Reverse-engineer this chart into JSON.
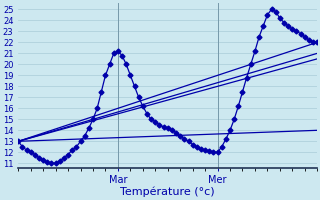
{
  "background_color": "#cde8f0",
  "grid_color": "#aaccd8",
  "line_color": "#0000aa",
  "xlabel": "Température (°c)",
  "xlabel_fontsize": 8,
  "ylabel_ticks": [
    11,
    12,
    13,
    14,
    15,
    16,
    17,
    18,
    19,
    20,
    21,
    22,
    23,
    24,
    25
  ],
  "ylim": [
    10.6,
    25.6
  ],
  "xlim": [
    0,
    72
  ],
  "mar_x": 24,
  "mer_x": 48,
  "main_series_x": [
    0,
    1,
    2,
    3,
    4,
    5,
    6,
    7,
    8,
    9,
    10,
    11,
    12,
    13,
    14,
    15,
    16,
    17,
    18,
    19,
    20,
    21,
    22,
    23,
    24,
    25,
    26,
    27,
    28,
    29,
    30,
    31,
    32,
    33,
    34,
    35,
    36,
    37,
    38,
    39,
    40,
    41,
    42,
    43,
    44,
    45,
    46,
    47,
    48,
    49,
    50,
    51,
    52,
    53,
    54,
    55,
    56,
    57,
    58,
    59,
    60,
    61,
    62,
    63,
    64,
    65,
    66,
    67,
    68,
    69,
    70,
    71,
    72
  ],
  "main_series_y": [
    13.0,
    12.5,
    12.2,
    12.0,
    11.8,
    11.5,
    11.3,
    11.1,
    11.0,
    11.0,
    11.2,
    11.5,
    11.8,
    12.2,
    12.5,
    13.0,
    13.5,
    14.2,
    15.0,
    16.0,
    17.5,
    19.0,
    20.0,
    21.0,
    21.2,
    20.8,
    20.0,
    19.0,
    18.0,
    17.0,
    16.2,
    15.5,
    15.0,
    14.8,
    14.5,
    14.3,
    14.2,
    14.0,
    13.8,
    13.5,
    13.2,
    13.0,
    12.7,
    12.5,
    12.3,
    12.2,
    12.1,
    12.0,
    12.0,
    12.5,
    13.2,
    14.0,
    15.0,
    16.2,
    17.5,
    18.8,
    20.0,
    21.2,
    22.5,
    23.5,
    24.5,
    25.0,
    24.8,
    24.2,
    23.8,
    23.5,
    23.2,
    23.0,
    22.8,
    22.5,
    22.2,
    22.0,
    22.0
  ],
  "diag_lines": [
    {
      "x": [
        0,
        72
      ],
      "y": [
        13.0,
        22.0
      ]
    },
    {
      "x": [
        0,
        72
      ],
      "y": [
        13.0,
        21.0
      ]
    },
    {
      "x": [
        0,
        72
      ],
      "y": [
        13.0,
        20.5
      ]
    },
    {
      "x": [
        0,
        72
      ],
      "y": [
        13.0,
        14.0
      ]
    }
  ],
  "marker": "D",
  "markersize": 2.5,
  "linewidth": 0.9
}
